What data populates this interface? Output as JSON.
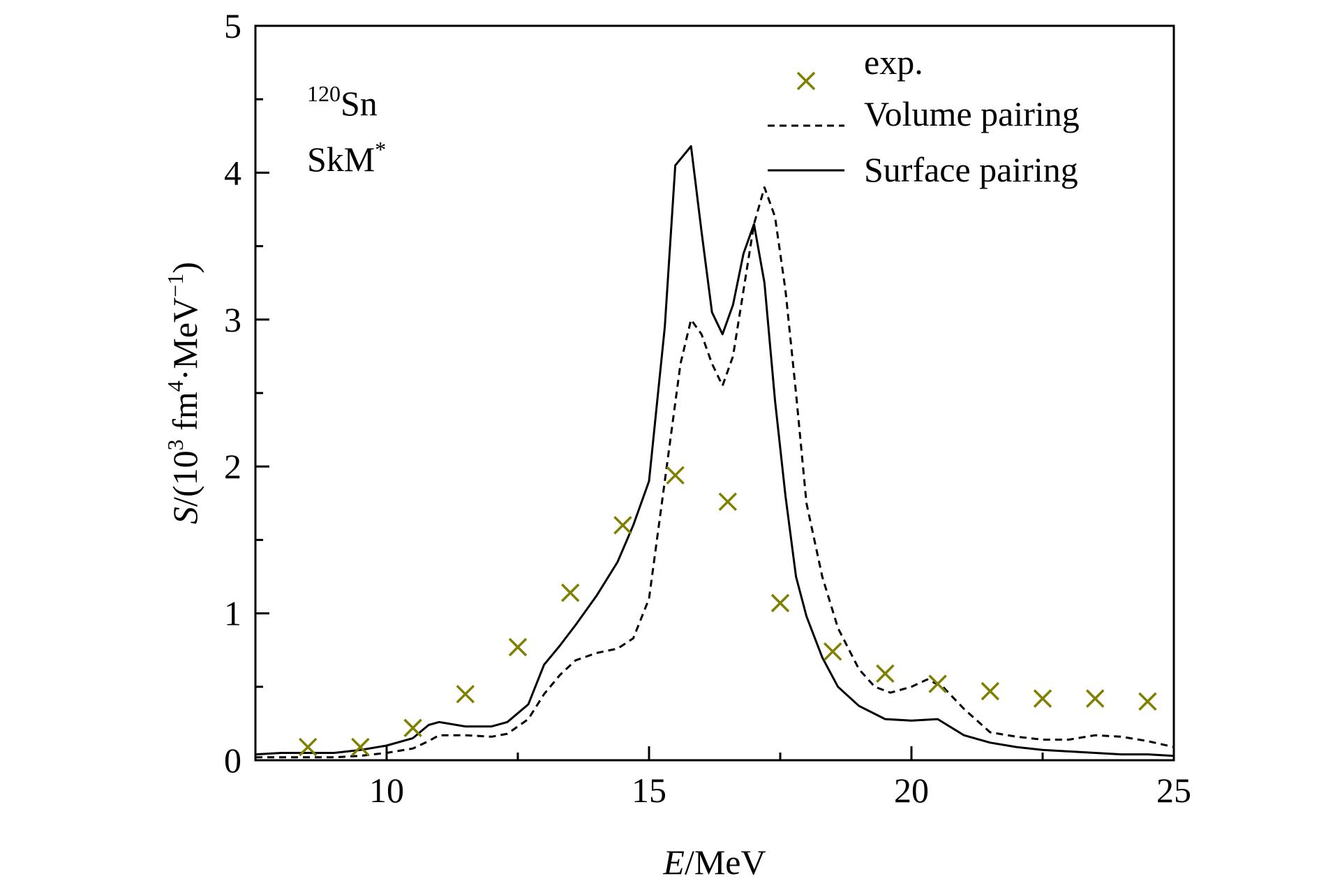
{
  "chart_data": {
    "type": "line",
    "title": "",
    "xlabel": {
      "italic": "E",
      "rest": "/MeV"
    },
    "ylabel": {
      "italic": "S",
      "pre": "/(10",
      "sup1": "3",
      "mid": " fm",
      "sup2": "4",
      "mid2": "·MeV",
      "sup3": "−1",
      "post": ")"
    },
    "xlim": [
      7.5,
      25
    ],
    "ylim": [
      0,
      5
    ],
    "x_ticks": [
      10,
      15,
      20,
      25
    ],
    "y_ticks": [
      0,
      1,
      2,
      3,
      4,
      5
    ],
    "x_tick_labels": [
      "10",
      "15",
      "20",
      "25"
    ],
    "y_tick_labels": [
      "0",
      "1",
      "2",
      "3",
      "4",
      "5"
    ],
    "grid": false,
    "legend_position": "top-right",
    "annotations": [
      {
        "sup": "120",
        "text": "Sn"
      },
      {
        "text": "SkM",
        "sup": "*"
      }
    ],
    "colors": {
      "exp": "#808000",
      "volume": "#000000",
      "surface": "#000000"
    },
    "series": [
      {
        "name": "exp.",
        "style": "marker-x",
        "x": [
          8.5,
          9.5,
          10.5,
          11.5,
          12.5,
          13.5,
          14.5,
          15.5,
          16.5,
          17.5,
          18.5,
          19.5,
          20.5,
          21.5,
          22.5,
          23.5,
          24.5
        ],
        "y": [
          0.09,
          0.09,
          0.22,
          0.45,
          0.77,
          1.14,
          1.6,
          1.94,
          1.76,
          1.07,
          0.74,
          0.59,
          0.52,
          0.47,
          0.42,
          0.42,
          0.4
        ]
      },
      {
        "name": "Volume pairing",
        "style": "dashed",
        "x": [
          7.5,
          8.0,
          8.5,
          9.0,
          9.5,
          10.0,
          10.5,
          10.8,
          11.0,
          11.5,
          12.0,
          12.3,
          12.7,
          13.0,
          13.3,
          13.6,
          14.0,
          14.4,
          14.7,
          15.0,
          15.3,
          15.6,
          15.8,
          16.0,
          16.2,
          16.4,
          16.6,
          16.8,
          17.0,
          17.2,
          17.4,
          17.6,
          17.8,
          18.0,
          18.3,
          18.6,
          19.0,
          19.3,
          19.6,
          20.0,
          20.3,
          20.6,
          21.0,
          21.5,
          22.0,
          22.5,
          23.0,
          23.5,
          24.0,
          24.5,
          25.0
        ],
        "y": [
          0.02,
          0.02,
          0.02,
          0.02,
          0.03,
          0.05,
          0.08,
          0.13,
          0.17,
          0.17,
          0.16,
          0.18,
          0.28,
          0.45,
          0.58,
          0.68,
          0.73,
          0.76,
          0.83,
          1.1,
          1.9,
          2.7,
          3.0,
          2.9,
          2.7,
          2.55,
          2.75,
          3.2,
          3.65,
          3.9,
          3.7,
          3.2,
          2.5,
          1.75,
          1.25,
          0.9,
          0.62,
          0.5,
          0.46,
          0.5,
          0.55,
          0.5,
          0.35,
          0.19,
          0.16,
          0.14,
          0.14,
          0.17,
          0.16,
          0.13,
          0.09
        ]
      },
      {
        "name": "Surface pairing",
        "style": "solid",
        "x": [
          7.5,
          8.0,
          8.5,
          9.0,
          9.5,
          10.0,
          10.5,
          10.8,
          11.0,
          11.5,
          12.0,
          12.3,
          12.7,
          13.0,
          13.3,
          13.6,
          14.0,
          14.4,
          14.7,
          15.0,
          15.3,
          15.5,
          15.8,
          16.0,
          16.2,
          16.4,
          16.6,
          16.8,
          17.0,
          17.2,
          17.4,
          17.6,
          17.8,
          18.0,
          18.3,
          18.6,
          19.0,
          19.5,
          20.0,
          20.5,
          21.0,
          21.5,
          22.0,
          22.5,
          23.0,
          23.5,
          24.0,
          24.5,
          25.0
        ],
        "y": [
          0.04,
          0.05,
          0.05,
          0.05,
          0.07,
          0.1,
          0.15,
          0.24,
          0.26,
          0.23,
          0.23,
          0.26,
          0.38,
          0.65,
          0.78,
          0.92,
          1.12,
          1.35,
          1.6,
          1.9,
          2.95,
          4.05,
          4.18,
          3.6,
          3.05,
          2.9,
          3.1,
          3.45,
          3.65,
          3.25,
          2.45,
          1.8,
          1.25,
          0.98,
          0.7,
          0.5,
          0.37,
          0.28,
          0.27,
          0.28,
          0.17,
          0.12,
          0.09,
          0.07,
          0.06,
          0.05,
          0.04,
          0.04,
          0.03
        ]
      }
    ]
  }
}
